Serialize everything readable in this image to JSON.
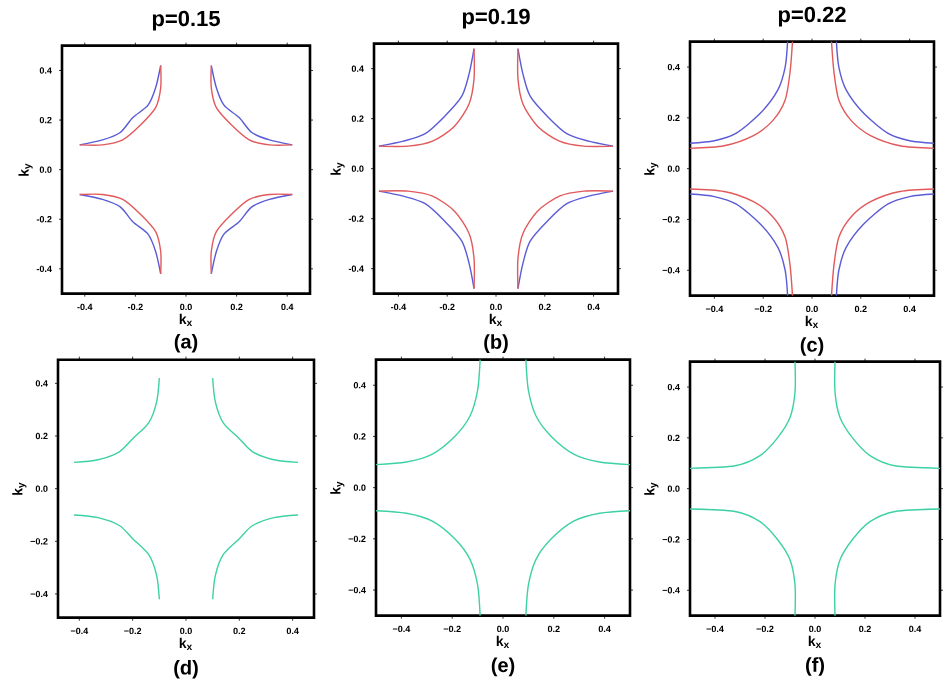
{
  "chart_data": [
    {
      "type": "line",
      "title": "p=0.15",
      "xlabel": "k$_{x}$",
      "ylabel": "k$_{y}$",
      "annotations": [
        "(a)"
      ],
      "xlim": [
        -0.49,
        0.49
      ],
      "ylim": [
        -0.5,
        0.5
      ],
      "xticks": [
        {
          "value": -0.4,
          "label": "-0.4"
        },
        {
          "value": -0.2,
          "label": "-0.2"
        },
        {
          "value": 0,
          "label": "0.0"
        },
        {
          "value": 0.2,
          "label": "0.2"
        },
        {
          "value": 0.4,
          "label": "0.4"
        }
      ],
      "yticks": [
        {
          "value": -0.4,
          "label": "-0.4"
        },
        {
          "value": -0.2,
          "label": "-0.2"
        },
        {
          "value": 0,
          "label": "0.0"
        },
        {
          "value": 0.2,
          "label": "0.2"
        },
        {
          "value": 0.4,
          "label": "0.4"
        }
      ],
      "series": [
        {
          "color": "#5b5bd6",
          "x": [
            -0.1,
            -0.12,
            -0.15,
            -0.21,
            -0.26,
            -0.33,
            -0.42
          ],
          "values": [
            0.42,
            0.33,
            0.26,
            0.21,
            0.15,
            0.12,
            0.1
          ]
        },
        {
          "color": "#5b5bd6",
          "x": [
            0.1,
            0.12,
            0.15,
            0.21,
            0.26,
            0.33,
            0.42
          ],
          "values": [
            0.42,
            0.33,
            0.26,
            0.21,
            0.15,
            0.12,
            0.1
          ]
        },
        {
          "color": "#5b5bd6",
          "x": [
            -0.1,
            -0.12,
            -0.15,
            -0.21,
            -0.26,
            -0.33,
            -0.42
          ],
          "values": [
            -0.42,
            -0.33,
            -0.26,
            -0.21,
            -0.15,
            -0.12,
            -0.1
          ]
        },
        {
          "color": "#5b5bd6",
          "x": [
            0.1,
            0.12,
            0.15,
            0.21,
            0.26,
            0.33,
            0.42
          ],
          "values": [
            -0.42,
            -0.33,
            -0.26,
            -0.21,
            -0.15,
            -0.12,
            -0.1
          ]
        },
        {
          "color": "#e2595b",
          "x": [
            -0.1,
            -0.1,
            -0.12,
            -0.18,
            -0.25,
            -0.33,
            -0.42
          ],
          "values": [
            0.42,
            0.33,
            0.25,
            0.18,
            0.12,
            0.1,
            0.1
          ]
        },
        {
          "color": "#e2595b",
          "x": [
            0.1,
            0.1,
            0.12,
            0.18,
            0.25,
            0.33,
            0.42
          ],
          "values": [
            0.42,
            0.33,
            0.25,
            0.18,
            0.12,
            0.1,
            0.1
          ]
        },
        {
          "color": "#e2595b",
          "x": [
            -0.1,
            -0.1,
            -0.12,
            -0.18,
            -0.25,
            -0.33,
            -0.42
          ],
          "values": [
            -0.42,
            -0.33,
            -0.25,
            -0.18,
            -0.12,
            -0.1,
            -0.1
          ]
        },
        {
          "color": "#e2595b",
          "x": [
            0.1,
            0.1,
            0.12,
            0.18,
            0.25,
            0.33,
            0.42
          ],
          "values": [
            -0.42,
            -0.33,
            -0.25,
            -0.18,
            -0.12,
            -0.1,
            -0.1
          ]
        }
      ]
    },
    {
      "type": "line",
      "title": "p=0.19",
      "xlabel": "k$_{x}$",
      "ylabel": "k$_{y}$",
      "annotations": [
        "(b)"
      ],
      "xlim": [
        -0.5,
        0.5
      ],
      "ylim": [
        -0.5,
        0.5
      ],
      "xticks": [
        {
          "value": -0.4,
          "label": "-0.4"
        },
        {
          "value": -0.2,
          "label": "-0.2"
        },
        {
          "value": 0,
          "label": "0.0"
        },
        {
          "value": 0.2,
          "label": "0.2"
        },
        {
          "value": 0.4,
          "label": "0.4"
        }
      ],
      "yticks": [
        {
          "value": -0.4,
          "label": "-0.4"
        },
        {
          "value": -0.2,
          "label": "-0.2"
        },
        {
          "value": 0,
          "label": "0.0"
        },
        {
          "value": 0.2,
          "label": "0.2"
        },
        {
          "value": 0.4,
          "label": "0.4"
        }
      ],
      "series": [
        {
          "color": "#5b5bd6",
          "x": [
            -0.09,
            -0.11,
            -0.14,
            -0.21,
            -0.29,
            -0.38,
            -0.48
          ],
          "values": [
            0.48,
            0.38,
            0.29,
            0.21,
            0.14,
            0.11,
            0.09
          ]
        },
        {
          "color": "#5b5bd6",
          "x": [
            0.09,
            0.11,
            0.14,
            0.21,
            0.29,
            0.38,
            0.48
          ],
          "values": [
            0.48,
            0.38,
            0.29,
            0.21,
            0.14,
            0.11,
            0.09
          ]
        },
        {
          "color": "#5b5bd6",
          "x": [
            -0.09,
            -0.11,
            -0.14,
            -0.21,
            -0.29,
            -0.38,
            -0.48
          ],
          "values": [
            -0.48,
            -0.38,
            -0.29,
            -0.21,
            -0.14,
            -0.11,
            -0.09
          ]
        },
        {
          "color": "#5b5bd6",
          "x": [
            0.09,
            0.11,
            0.14,
            0.21,
            0.29,
            0.38,
            0.48
          ],
          "values": [
            -0.48,
            -0.38,
            -0.29,
            -0.21,
            -0.14,
            -0.11,
            -0.09
          ]
        },
        {
          "color": "#e2595b",
          "x": [
            -0.09,
            -0.09,
            -0.11,
            -0.17,
            -0.26,
            -0.36,
            -0.48
          ],
          "values": [
            0.48,
            0.36,
            0.26,
            0.17,
            0.11,
            0.09,
            0.09
          ]
        },
        {
          "color": "#e2595b",
          "x": [
            0.09,
            0.09,
            0.11,
            0.17,
            0.26,
            0.36,
            0.48
          ],
          "values": [
            0.48,
            0.36,
            0.26,
            0.17,
            0.11,
            0.09,
            0.09
          ]
        },
        {
          "color": "#e2595b",
          "x": [
            -0.09,
            -0.09,
            -0.11,
            -0.17,
            -0.26,
            -0.36,
            -0.48
          ],
          "values": [
            -0.48,
            -0.36,
            -0.26,
            -0.17,
            -0.11,
            -0.09,
            -0.09
          ]
        },
        {
          "color": "#e2595b",
          "x": [
            0.09,
            0.09,
            0.11,
            0.17,
            0.26,
            0.36,
            0.48
          ],
          "values": [
            -0.48,
            -0.36,
            -0.26,
            -0.17,
            -0.11,
            -0.09,
            -0.09
          ]
        }
      ]
    },
    {
      "type": "line",
      "title": "p=0.22",
      "xlabel": "k$_{x}$",
      "ylabel": "k$_{y}$",
      "annotations": [
        "(c)"
      ],
      "xlim": [
        -0.5,
        0.5
      ],
      "ylim": [
        -0.5,
        0.5
      ],
      "xticks": [
        {
          "value": -0.4,
          "label": "−0.4"
        },
        {
          "value": -0.2,
          "label": "−0.2"
        },
        {
          "value": 0,
          "label": "0.0"
        },
        {
          "value": 0.2,
          "label": "0.2"
        },
        {
          "value": 0.4,
          "label": "0.4"
        }
      ],
      "yticks": [
        {
          "value": -0.4,
          "label": "−0.4"
        },
        {
          "value": -0.2,
          "label": "−0.2"
        },
        {
          "value": 0,
          "label": "0.0"
        },
        {
          "value": 0.2,
          "label": "0.2"
        },
        {
          "value": 0.4,
          "label": "0.4"
        }
      ],
      "series": [
        {
          "color": "#5b5bd6",
          "x": [
            -0.1,
            -0.11,
            -0.14,
            -0.21,
            -0.31,
            -0.4,
            -0.5
          ],
          "values": [
            0.5,
            0.4,
            0.31,
            0.22,
            0.14,
            0.11,
            0.1
          ]
        },
        {
          "color": "#5b5bd6",
          "x": [
            0.1,
            0.11,
            0.14,
            0.21,
            0.31,
            0.4,
            0.5
          ],
          "values": [
            0.5,
            0.4,
            0.31,
            0.22,
            0.14,
            0.11,
            0.1
          ]
        },
        {
          "color": "#5b5bd6",
          "x": [
            -0.1,
            -0.11,
            -0.14,
            -0.21,
            -0.31,
            -0.4,
            -0.5
          ],
          "values": [
            -0.5,
            -0.4,
            -0.31,
            -0.22,
            -0.14,
            -0.11,
            -0.1
          ]
        },
        {
          "color": "#5b5bd6",
          "x": [
            0.1,
            0.11,
            0.14,
            0.21,
            0.31,
            0.4,
            0.5
          ],
          "values": [
            -0.5,
            -0.4,
            -0.31,
            -0.22,
            -0.14,
            -0.11,
            -0.1
          ]
        },
        {
          "color": "#e2595b",
          "x": [
            -0.08,
            -0.09,
            -0.11,
            -0.16,
            -0.24,
            -0.36,
            -0.5
          ],
          "values": [
            0.5,
            0.38,
            0.27,
            0.19,
            0.13,
            0.09,
            0.08
          ]
        },
        {
          "color": "#e2595b",
          "x": [
            0.08,
            0.09,
            0.11,
            0.16,
            0.24,
            0.36,
            0.5
          ],
          "values": [
            0.5,
            0.38,
            0.27,
            0.19,
            0.13,
            0.09,
            0.08
          ]
        },
        {
          "color": "#e2595b",
          "x": [
            -0.08,
            -0.09,
            -0.11,
            -0.16,
            -0.24,
            -0.36,
            -0.5
          ],
          "values": [
            -0.5,
            -0.38,
            -0.27,
            -0.19,
            -0.13,
            -0.09,
            -0.08
          ]
        },
        {
          "color": "#e2595b",
          "x": [
            0.08,
            0.09,
            0.11,
            0.16,
            0.24,
            0.36,
            0.5
          ],
          "values": [
            -0.5,
            -0.38,
            -0.27,
            -0.19,
            -0.13,
            -0.09,
            -0.08
          ]
        }
      ]
    },
    {
      "type": "line",
      "xlabel": "k$_{x}$",
      "ylabel": "k$_{y}$",
      "annotations": [
        "(d)"
      ],
      "xlim": [
        -0.48,
        0.48
      ],
      "ylim": [
        -0.49,
        0.49
      ],
      "xticks": [
        {
          "value": -0.4,
          "label": "−0.4"
        },
        {
          "value": -0.2,
          "label": "−0.2"
        },
        {
          "value": 0,
          "label": "0.0"
        },
        {
          "value": 0.2,
          "label": "0.2"
        },
        {
          "value": 0.4,
          "label": "0.4"
        }
      ],
      "yticks": [
        {
          "value": -0.4,
          "label": "−0.4"
        },
        {
          "value": -0.2,
          "label": "−0.2"
        },
        {
          "value": 0,
          "label": "0.0"
        },
        {
          "value": 0.2,
          "label": "0.2"
        },
        {
          "value": 0.4,
          "label": "0.4"
        }
      ],
      "series": [
        {
          "color": "#3dd1a5",
          "x": [
            -0.1,
            -0.11,
            -0.14,
            -0.2,
            -0.25,
            -0.33,
            -0.42
          ],
          "values": [
            0.42,
            0.33,
            0.25,
            0.19,
            0.14,
            0.11,
            0.1
          ]
        },
        {
          "color": "#3dd1a5",
          "x": [
            0.1,
            0.11,
            0.14,
            0.2,
            0.25,
            0.33,
            0.42
          ],
          "values": [
            0.42,
            0.33,
            0.25,
            0.19,
            0.14,
            0.11,
            0.1
          ]
        },
        {
          "color": "#3dd1a5",
          "x": [
            -0.1,
            -0.11,
            -0.14,
            -0.2,
            -0.25,
            -0.33,
            -0.42
          ],
          "values": [
            -0.42,
            -0.33,
            -0.25,
            -0.19,
            -0.14,
            -0.11,
            -0.1
          ]
        },
        {
          "color": "#3dd1a5",
          "x": [
            0.1,
            0.11,
            0.14,
            0.2,
            0.25,
            0.33,
            0.42
          ],
          "values": [
            -0.42,
            -0.33,
            -0.25,
            -0.19,
            -0.14,
            -0.11,
            -0.1
          ]
        }
      ]
    },
    {
      "type": "line",
      "xlabel": "k$_{x}$",
      "ylabel": "k$_{y}$",
      "annotations": [
        "(e)"
      ],
      "xlim": [
        -0.5,
        0.5
      ],
      "ylim": [
        -0.5,
        0.5
      ],
      "xticks": [
        {
          "value": -0.4,
          "label": "−0.4"
        },
        {
          "value": -0.2,
          "label": "−0.2"
        },
        {
          "value": 0,
          "label": "0.0"
        },
        {
          "value": 0.2,
          "label": "0.2"
        },
        {
          "value": 0.4,
          "label": "0.4"
        }
      ],
      "yticks": [
        {
          "value": -0.4,
          "label": "−0.4"
        },
        {
          "value": -0.2,
          "label": "−0.2"
        },
        {
          "value": 0,
          "label": "0.0"
        },
        {
          "value": 0.2,
          "label": "0.2"
        },
        {
          "value": 0.4,
          "label": "0.4"
        }
      ],
      "series": [
        {
          "color": "#3dd1a5",
          "x": [
            -0.09,
            -0.1,
            -0.13,
            -0.19,
            -0.28,
            -0.38,
            -0.5
          ],
          "values": [
            0.5,
            0.38,
            0.28,
            0.2,
            0.13,
            0.1,
            0.09
          ]
        },
        {
          "color": "#3dd1a5",
          "x": [
            0.09,
            0.1,
            0.13,
            0.19,
            0.28,
            0.38,
            0.5
          ],
          "values": [
            0.5,
            0.38,
            0.28,
            0.2,
            0.13,
            0.1,
            0.09
          ]
        },
        {
          "color": "#3dd1a5",
          "x": [
            -0.09,
            -0.1,
            -0.13,
            -0.19,
            -0.28,
            -0.38,
            -0.5
          ],
          "values": [
            -0.5,
            -0.38,
            -0.28,
            -0.2,
            -0.13,
            -0.1,
            -0.09
          ]
        },
        {
          "color": "#3dd1a5",
          "x": [
            0.09,
            0.1,
            0.13,
            0.19,
            0.28,
            0.38,
            0.5
          ],
          "values": [
            -0.5,
            -0.38,
            -0.28,
            -0.2,
            -0.13,
            -0.1,
            -0.09
          ]
        }
      ]
    },
    {
      "type": "line",
      "xlabel": "k$_{x}$",
      "ylabel": "k$_{y}$",
      "annotations": [
        "(f)"
      ],
      "xlim": [
        -0.5,
        0.5
      ],
      "ylim": [
        -0.5,
        0.5
      ],
      "xticks": [
        {
          "value": -0.4,
          "label": "−0.4"
        },
        {
          "value": -0.2,
          "label": "−0.2"
        },
        {
          "value": 0,
          "label": "0.0"
        },
        {
          "value": 0.2,
          "label": "0.2"
        },
        {
          "value": 0.4,
          "label": "0.4"
        }
      ],
      "yticks": [
        {
          "value": -0.4,
          "label": "−0.4"
        },
        {
          "value": -0.2,
          "label": "−0.2"
        },
        {
          "value": 0,
          "label": "0.0"
        },
        {
          "value": 0.2,
          "label": "0.2"
        },
        {
          "value": 0.4,
          "label": "0.4"
        }
      ],
      "series": [
        {
          "color": "#3dd1a5",
          "x": [
            -0.08,
            -0.08,
            -0.1,
            -0.15,
            -0.22,
            -0.32,
            -0.5
          ],
          "values": [
            0.5,
            0.38,
            0.28,
            0.2,
            0.13,
            0.09,
            0.08
          ]
        },
        {
          "color": "#3dd1a5",
          "x": [
            0.08,
            0.08,
            0.1,
            0.15,
            0.22,
            0.32,
            0.5
          ],
          "values": [
            0.5,
            0.38,
            0.28,
            0.2,
            0.13,
            0.09,
            0.08
          ]
        },
        {
          "color": "#3dd1a5",
          "x": [
            -0.08,
            -0.08,
            -0.1,
            -0.15,
            -0.22,
            -0.32,
            -0.5
          ],
          "values": [
            -0.5,
            -0.38,
            -0.28,
            -0.2,
            -0.13,
            -0.09,
            -0.08
          ]
        },
        {
          "color": "#3dd1a5",
          "x": [
            0.08,
            0.08,
            0.1,
            0.15,
            0.22,
            0.32,
            0.5
          ],
          "values": [
            -0.5,
            -0.38,
            -0.28,
            -0.2,
            -0.13,
            -0.09,
            -0.08
          ]
        }
      ]
    }
  ]
}
